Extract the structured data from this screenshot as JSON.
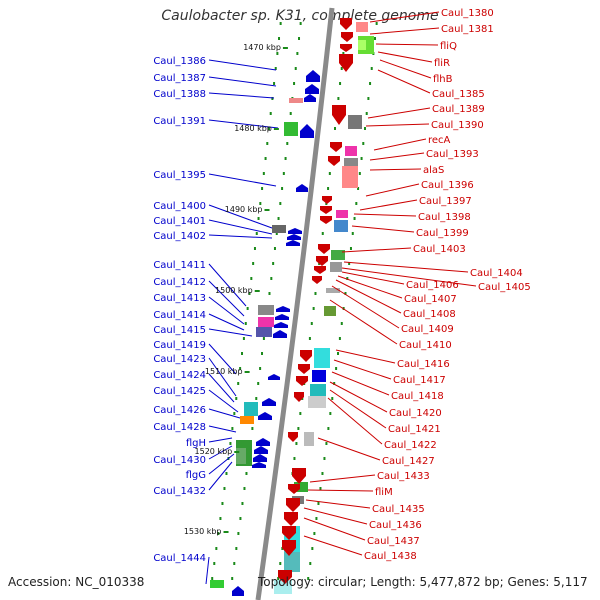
{
  "title": "Caulobacter sp. K31, complete genome",
  "footer": {
    "accession": "Accession: NC_010338",
    "topology": "Topology: circular; Length: 5,477,872 bp; Genes: 5,117"
  },
  "colors": {
    "left_genes": "#0000cc",
    "right_genes": "#cc0000",
    "backbone": "#8a8a8a",
    "tick": "#1a8a1a"
  },
  "scale_labels": [
    "1470 kbp",
    "1480 kbp",
    "1490 kbp",
    "1500 kbp",
    "1510 kbp",
    "1520 kbp",
    "1530 kbp"
  ],
  "left_labels": [
    "Caul_1386",
    "Caul_1387",
    "Caul_1388",
    "Caul_1391",
    "Caul_1395",
    "Caul_1400",
    "Caul_1401",
    "Caul_1402",
    "Caul_1411",
    "Caul_1412",
    "Caul_1413",
    "Caul_1414",
    "Caul_1415",
    "Caul_1419",
    "Caul_1423",
    "Caul_1424",
    "Caul_1425",
    "Caul_1426",
    "Caul_1428",
    "flgH",
    "Caul_1430",
    "flgG",
    "Caul_1432",
    "Caul_1444"
  ],
  "right_labels": [
    "Caul_1380",
    "Caul_1381",
    "fliQ",
    "fliR",
    "flhB",
    "Caul_1385",
    "Caul_1389",
    "Caul_1390",
    "recA",
    "Caul_1393",
    "alaS",
    "Caul_1396",
    "Caul_1397",
    "Caul_1398",
    "Caul_1399",
    "Caul_1403",
    "Caul_1404",
    "Caul_1405",
    "Caul_1406",
    "Caul_1407",
    "Caul_1408",
    "Caul_1409",
    "Caul_1410",
    "Caul_1416",
    "Caul_1417",
    "Caul_1418",
    "Caul_1420",
    "Caul_1421",
    "Caul_1422",
    "Caul_1427",
    "Caul_1433",
    "fliM",
    "Caul_1435",
    "Caul_1436",
    "Caul_1437",
    "Caul_1438"
  ]
}
